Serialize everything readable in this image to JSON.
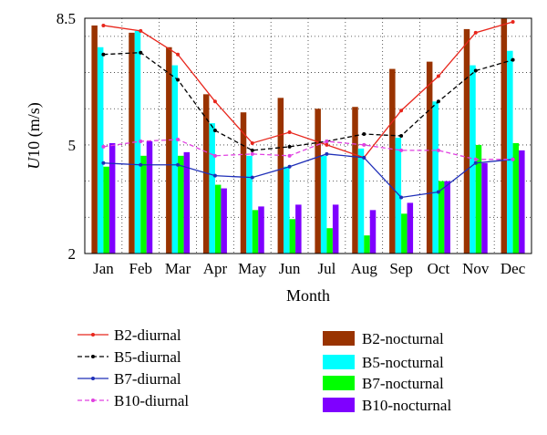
{
  "chart_data": {
    "type": "bar",
    "xlabel": "Month",
    "ylabel_main": "U",
    "ylabel_rest": "10 (m/s)",
    "ylim": [
      2,
      8.5
    ],
    "yticks": [
      2,
      5,
      8.5
    ],
    "ytick_labels": [
      "2",
      "5",
      "8.5"
    ],
    "grid": true,
    "legend_position": "bottom",
    "categories": [
      "Jan",
      "Feb",
      "Mar",
      "Apr",
      "May",
      "Jun",
      "Jul",
      "Aug",
      "Sep",
      "Oct",
      "Nov",
      "Dec"
    ],
    "bar_series": [
      {
        "name": "B2-nocturnal",
        "color": "#993300",
        "values": [
          8.3,
          8.1,
          7.7,
          6.4,
          5.9,
          6.3,
          6.0,
          6.05,
          7.1,
          7.3,
          8.2,
          8.5
        ]
      },
      {
        "name": "B5-nocturnal",
        "color": "#00ffff",
        "values": [
          7.7,
          8.15,
          7.2,
          5.6,
          4.7,
          4.4,
          4.7,
          4.9,
          5.2,
          6.2,
          7.2,
          7.6
        ]
      },
      {
        "name": "B7-nocturnal",
        "color": "#00ff00",
        "values": [
          4.4,
          4.7,
          4.7,
          3.9,
          3.2,
          2.95,
          2.7,
          2.5,
          3.1,
          4.0,
          5.0,
          5.05
        ]
      },
      {
        "name": "B10-nocturnal",
        "color": "#7f00ff",
        "values": [
          5.05,
          5.1,
          4.8,
          3.8,
          3.3,
          3.35,
          3.35,
          3.2,
          3.4,
          4.0,
          4.5,
          4.85
        ]
      }
    ],
    "line_series": [
      {
        "name": "B2-diurnal",
        "color": "#e8261c",
        "dash": "solid",
        "values": [
          8.3,
          8.15,
          7.5,
          6.2,
          5.05,
          5.35,
          5.0,
          4.65,
          5.95,
          6.9,
          8.1,
          8.4
        ]
      },
      {
        "name": "B5-diurnal",
        "color": "#000000",
        "dash": "dashed",
        "values": [
          7.5,
          7.55,
          6.8,
          5.4,
          4.85,
          4.95,
          5.1,
          5.3,
          5.25,
          6.2,
          7.05,
          7.35
        ]
      },
      {
        "name": "B7-diurnal",
        "color": "#1f2fb8",
        "dash": "solid",
        "values": [
          4.5,
          4.45,
          4.45,
          4.15,
          4.1,
          4.4,
          4.75,
          4.65,
          3.55,
          3.7,
          4.5,
          4.6
        ]
      },
      {
        "name": "B10-diurnal",
        "color": "#e040e0",
        "dash": "dashed",
        "values": [
          4.95,
          5.1,
          5.15,
          4.7,
          4.75,
          4.7,
          5.1,
          5.0,
          4.85,
          4.85,
          4.6,
          4.6
        ]
      }
    ]
  }
}
